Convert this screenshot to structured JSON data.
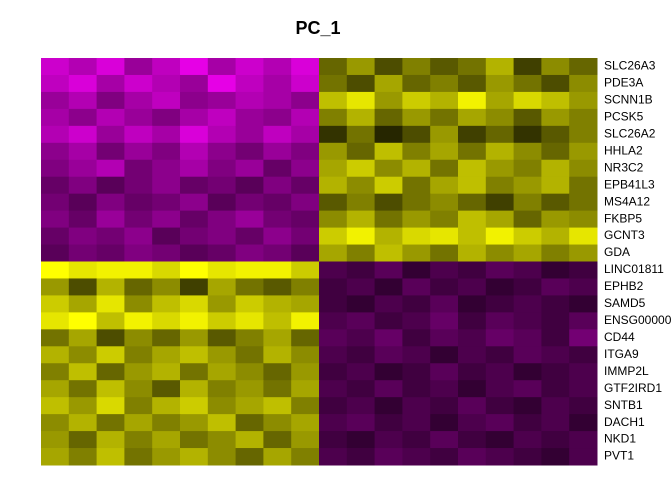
{
  "chart_data": {
    "type": "heatmap",
    "title": "PC_1",
    "rows": [
      "SLC26A3",
      "PDE3A",
      "SCNN1B",
      "PCSK5",
      "SLC26A2",
      "HHLA2",
      "NR3C2",
      "EPB41L3",
      "MS4A12",
      "FKBP5",
      "GCNT3",
      "GDA",
      "LINC01811",
      "EPHB2",
      "SAMD5",
      "ENSG00000",
      "CD44",
      "ITGA9",
      "IMMP2L",
      "GTF2IRD1",
      "SNTB1",
      "DACH1",
      "NKD1",
      "PVT1"
    ],
    "colors": [
      "#FF00FF",
      "#000000",
      "#FFFF00"
    ],
    "color_range": [
      -2,
      2
    ],
    "values": [
      [
        -1.6,
        -1.4,
        -1.7,
        -1.2,
        -1.5,
        -1.8,
        -1.3,
        -1.6,
        -1.4,
        -1.7,
        0.8,
        1.2,
        0.6,
        1.0,
        0.7,
        0.9,
        1.4,
        0.5,
        1.1,
        0.8
      ],
      [
        -1.5,
        -1.7,
        -1.3,
        -1.6,
        -1.4,
        -1.2,
        -1.8,
        -1.5,
        -1.3,
        -1.6,
        0.9,
        0.6,
        1.3,
        0.8,
        1.0,
        0.7,
        1.2,
        0.9,
        0.6,
        1.1
      ],
      [
        -1.2,
        -1.4,
        -1.0,
        -1.3,
        -1.5,
        -1.1,
        -1.2,
        -1.4,
        -1.3,
        -1.1,
        1.5,
        1.8,
        1.2,
        1.6,
        1.4,
        1.9,
        1.3,
        1.7,
        1.5,
        1.2
      ],
      [
        -1.3,
        -1.1,
        -1.4,
        -1.2,
        -1.0,
        -1.3,
        -1.5,
        -1.2,
        -1.1,
        -1.4,
        1.0,
        1.4,
        0.8,
        1.2,
        0.9,
        1.3,
        1.1,
        0.7,
        1.2,
        1.0
      ],
      [
        -1.4,
        -1.6,
        -1.2,
        -1.5,
        -1.3,
        -1.7,
        -1.4,
        -1.2,
        -1.5,
        -1.3,
        0.4,
        0.9,
        0.3,
        0.6,
        1.2,
        0.5,
        0.8,
        0.4,
        0.7,
        1.0
      ],
      [
        -1.1,
        -1.3,
        -0.9,
        -1.2,
        -1.0,
        -1.4,
        -1.1,
        -0.9,
        -1.2,
        -1.0,
        1.2,
        0.8,
        1.5,
        1.0,
        1.3,
        0.9,
        1.4,
        1.1,
        0.8,
        1.2
      ],
      [
        -1.0,
        -1.2,
        -1.4,
        -0.9,
        -1.1,
        -1.3,
        -1.0,
        -1.2,
        -0.8,
        -1.1,
        1.3,
        1.6,
        1.1,
        1.4,
        0.9,
        1.5,
        1.2,
        1.0,
        1.4,
        1.1
      ],
      [
        -0.8,
        -1.0,
        -0.7,
        -0.9,
        -1.1,
        -0.8,
        -0.9,
        -0.7,
        -1.0,
        -0.8,
        1.4,
        1.1,
        1.6,
        0.9,
        1.3,
        1.5,
        1.0,
        1.2,
        1.4,
        0.9
      ],
      [
        -0.9,
        -0.7,
        -1.0,
        -0.8,
        -0.9,
        -1.1,
        -0.7,
        -0.9,
        -0.8,
        -1.0,
        0.7,
        1.0,
        0.6,
        0.9,
        1.1,
        0.8,
        0.5,
        1.0,
        0.7,
        0.9
      ],
      [
        -1.0,
        -0.8,
        -1.2,
        -0.9,
        -1.1,
        -0.8,
        -1.0,
        -1.2,
        -0.9,
        -0.8,
        1.1,
        1.4,
        0.9,
        1.2,
        1.0,
        1.5,
        1.3,
        0.8,
        1.2,
        1.1
      ],
      [
        -0.8,
        -1.0,
        -0.9,
        -1.1,
        -0.7,
        -0.9,
        -1.0,
        -0.8,
        -1.1,
        -0.9,
        1.6,
        1.9,
        1.4,
        1.7,
        1.8,
        1.5,
        1.9,
        1.6,
        1.4,
        1.8
      ],
      [
        -0.7,
        -0.9,
        -0.8,
        -1.0,
        -0.9,
        -0.7,
        -0.8,
        -1.0,
        -0.9,
        -0.7,
        1.3,
        1.0,
        1.5,
        1.2,
        0.9,
        1.4,
        1.1,
        1.3,
        1.0,
        1.2
      ],
      [
        2.0,
        1.8,
        1.9,
        1.9,
        1.7,
        2.0,
        1.8,
        1.9,
        1.9,
        1.6,
        -0.6,
        -0.5,
        -0.7,
        -0.4,
        -0.6,
        -0.5,
        -0.7,
        -0.6,
        -0.4,
        -0.5
      ],
      [
        1.2,
        0.6,
        1.4,
        0.8,
        1.1,
        0.5,
        1.3,
        0.9,
        0.7,
        1.0,
        -0.5,
        -0.6,
        -0.4,
        -0.7,
        -0.5,
        -0.6,
        -0.4,
        -0.5,
        -0.7,
        -0.6
      ],
      [
        1.6,
        1.3,
        1.8,
        1.1,
        1.5,
        1.7,
        1.2,
        1.6,
        1.4,
        1.3,
        -0.5,
        -0.4,
        -0.6,
        -0.5,
        -0.7,
        -0.4,
        -0.5,
        -0.6,
        -0.5,
        -0.4
      ],
      [
        1.8,
        2.0,
        1.5,
        1.9,
        1.7,
        1.9,
        1.6,
        1.8,
        1.5,
        1.9,
        -0.6,
        -0.7,
        -0.5,
        -0.6,
        -0.8,
        -0.5,
        -0.7,
        -0.6,
        -0.5,
        -0.7
      ],
      [
        0.9,
        1.3,
        0.6,
        1.1,
        0.8,
        1.2,
        0.7,
        1.0,
        1.3,
        0.8,
        -0.7,
        -0.6,
        -0.8,
        -0.5,
        -0.7,
        -0.6,
        -0.8,
        -0.7,
        -0.5,
        -0.9
      ],
      [
        1.4,
        1.1,
        1.6,
        1.0,
        1.3,
        1.5,
        1.2,
        0.9,
        1.4,
        1.1,
        -0.6,
        -0.5,
        -0.7,
        -0.6,
        -0.4,
        -0.6,
        -0.5,
        -0.7,
        -0.6,
        -0.5
      ],
      [
        1.0,
        1.5,
        0.8,
        1.2,
        1.4,
        0.9,
        1.3,
        1.1,
        0.8,
        1.2,
        -0.5,
        -0.6,
        -0.4,
        -0.5,
        -0.7,
        -0.5,
        -0.6,
        -0.4,
        -0.5,
        -0.6
      ],
      [
        1.3,
        0.9,
        1.5,
        1.1,
        0.7,
        1.4,
        1.0,
        1.2,
        0.9,
        1.3,
        -0.6,
        -0.5,
        -0.7,
        -0.5,
        -0.6,
        -0.4,
        -0.6,
        -0.7,
        -0.5,
        -0.6
      ],
      [
        1.5,
        1.2,
        1.7,
        1.0,
        1.4,
        1.6,
        1.1,
        1.3,
        1.5,
        1.0,
        -0.5,
        -0.6,
        -0.4,
        -0.6,
        -0.5,
        -0.7,
        -0.5,
        -0.4,
        -0.6,
        -0.5
      ],
      [
        1.1,
        1.4,
        0.9,
        1.3,
        1.0,
        1.2,
        1.5,
        0.8,
        1.1,
        1.3,
        -0.6,
        -0.7,
        -0.5,
        -0.6,
        -0.4,
        -0.6,
        -0.7,
        -0.5,
        -0.6,
        -0.4
      ],
      [
        1.2,
        0.8,
        1.4,
        1.0,
        1.3,
        0.9,
        1.1,
        1.4,
        0.8,
        1.2,
        -0.5,
        -0.4,
        -0.6,
        -0.5,
        -0.7,
        -0.5,
        -0.4,
        -0.6,
        -0.5,
        -0.6
      ],
      [
        1.3,
        1.0,
        1.5,
        0.9,
        1.2,
        1.4,
        1.1,
        0.8,
        1.3,
        1.0,
        -0.6,
        -0.5,
        -0.7,
        -0.6,
        -0.5,
        -0.7,
        -0.6,
        -0.5,
        -0.4,
        -0.6
      ]
    ]
  }
}
